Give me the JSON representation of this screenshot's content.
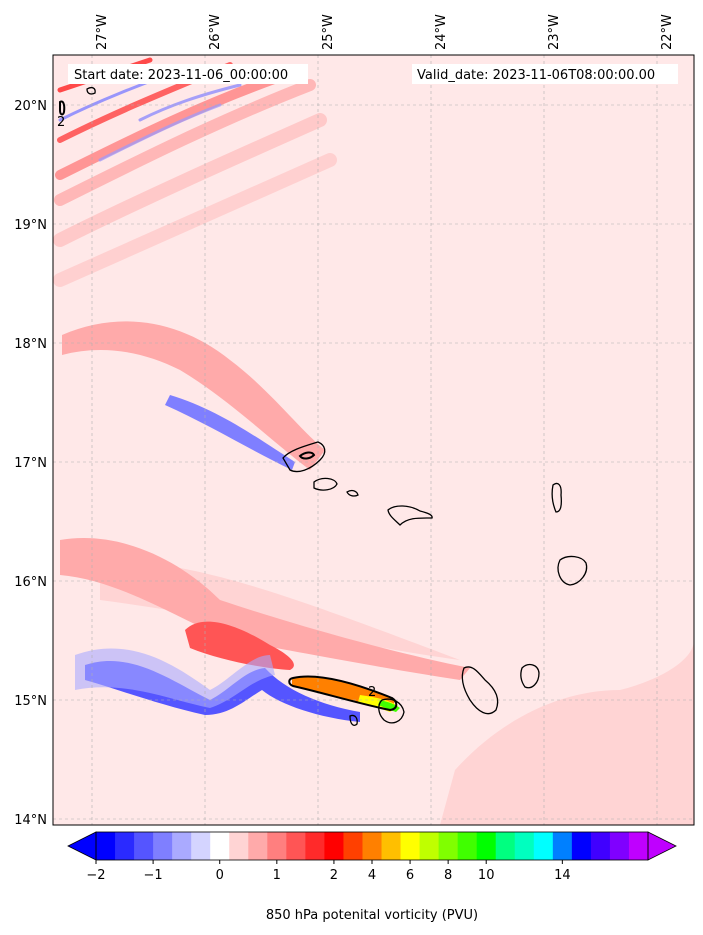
{
  "chart_data": {
    "type": "heatmap",
    "header": {
      "start": "Start date: 2023-11-06_00:00:00",
      "valid": "Valid_date: 2023-11-06T08:00:00.00"
    },
    "lon_labels": [
      "27°W",
      "26°W",
      "25°W",
      "24°W",
      "23°W",
      "22°W"
    ],
    "lat_labels": [
      "20°N",
      "19°N",
      "18°N",
      "17°N",
      "16°N",
      "15°N",
      "14°N"
    ],
    "lon_range": [
      -27.35,
      -21.75
    ],
    "lat_range": [
      13.95,
      20.42
    ],
    "grid": true,
    "colorbar": {
      "label": "850 hPa potenital vorticity (PVU)",
      "tick_labels": [
        "−2",
        "−1",
        "0",
        "1",
        "2",
        "4",
        "6",
        "8",
        "10",
        "14"
      ],
      "extend": "both",
      "colors": [
        "#0000ff",
        "#2a2aff",
        "#5555ff",
        "#7f7fff",
        "#aaaaff",
        "#d4d4ff",
        "#ffffff",
        "#ffd4d4",
        "#ffaaaa",
        "#ff7f7f",
        "#ff5555",
        "#ff2a2a",
        "#ff0000",
        "#ff4000",
        "#ff8000",
        "#ffbf00",
        "#ffff00",
        "#bfff00",
        "#80ff00",
        "#40ff00",
        "#00ff00",
        "#00ff80",
        "#00ffbf",
        "#00ffff",
        "#0080ff",
        "#0000ff",
        "#4000ff",
        "#8000ff",
        "#bf00ff"
      ]
    },
    "contour_labels": [
      "2",
      "2"
    ],
    "islands": [
      "Santo Antão",
      "São Vicente",
      "Santa Luzia",
      "São Nicolau",
      "Sal",
      "Boa Vista",
      "Maio",
      "Santiago",
      "Fogo",
      "Brava"
    ]
  }
}
